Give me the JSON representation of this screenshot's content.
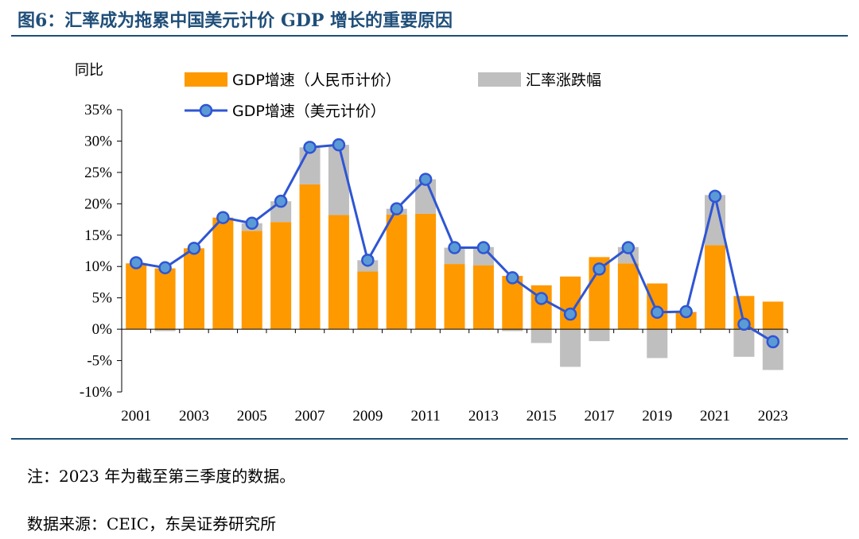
{
  "figure_title": "图6：汇率成为拖累中国美元计价 GDP 增长的重要原因",
  "note": "注：2023 年为截至第三季度的数据。",
  "source": "数据来源：CEIC，东吴证券研究所",
  "colors": {
    "title": "#1f4e79",
    "gdp_rmb": "#ff9900",
    "fx": "#bfbfbf",
    "gdp_usd_line": "#2f55d4",
    "gdp_usd_marker": "#5b9bd5"
  },
  "chart_data": {
    "type": "bar",
    "y_unit_label": "同比",
    "ylim": [
      -10,
      35
    ],
    "ytick_values": [
      -10,
      -5,
      0,
      5,
      10,
      15,
      20,
      25,
      30,
      35
    ],
    "ytick_labels": [
      "-10%",
      "-5%",
      "0%",
      "5%",
      "10%",
      "15%",
      "20%",
      "25%",
      "30%",
      "35%"
    ],
    "categories": [
      "2001",
      "2002",
      "2003",
      "2004",
      "2005",
      "2006",
      "2007",
      "2008",
      "2009",
      "2010",
      "2011",
      "2012",
      "2013",
      "2014",
      "2015",
      "2016",
      "2017",
      "2018",
      "2019",
      "2020",
      "2021",
      "2022",
      "2023"
    ],
    "x_tick_labels": [
      "2001",
      "",
      "2003",
      "",
      "2005",
      "",
      "2007",
      "",
      "2009",
      "",
      "2011",
      "",
      "2013",
      "",
      "2015",
      "",
      "2017",
      "",
      "2019",
      "",
      "2021",
      "",
      "2023"
    ],
    "legend_position": "top",
    "series": [
      {
        "name": "GDP增速（人民币计价）",
        "type": "bar",
        "values": [
          10.5,
          9.7,
          12.9,
          17.8,
          15.7,
          17.1,
          23.1,
          18.2,
          9.2,
          18.3,
          18.4,
          10.4,
          10.2,
          8.5,
          7.0,
          8.4,
          11.5,
          10.5,
          7.3,
          2.7,
          13.4,
          5.3,
          4.4
        ]
      },
      {
        "name": "汇率涨跌幅",
        "type": "bar",
        "values": [
          0.0,
          -0.3,
          0.0,
          0.0,
          1.2,
          3.3,
          5.9,
          11.2,
          1.8,
          0.9,
          5.5,
          2.6,
          2.9,
          -0.3,
          -2.2,
          -6.0,
          -1.9,
          2.6,
          -4.6,
          0.1,
          8.0,
          -4.4,
          -6.5
        ]
      },
      {
        "name": "GDP增速（美元计价）",
        "type": "line",
        "values": [
          10.6,
          9.8,
          12.9,
          17.8,
          16.9,
          20.4,
          29.0,
          29.4,
          11.0,
          19.2,
          23.9,
          13.0,
          13.0,
          8.2,
          4.9,
          2.4,
          9.6,
          13.0,
          2.7,
          2.8,
          21.2,
          0.8,
          -2.0
        ]
      }
    ]
  }
}
